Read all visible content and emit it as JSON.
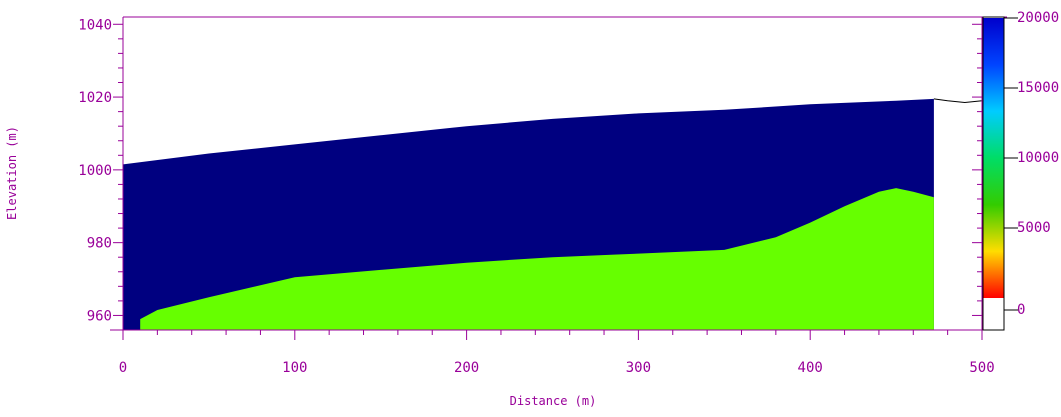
{
  "chart_data": {
    "type": "area",
    "xlabel": "Distance (m)",
    "ylabel": "Elevation (m)",
    "xlim": [
      0,
      500
    ],
    "ylim": [
      956,
      1042
    ],
    "x_ticks": [
      "0",
      "100",
      "200",
      "300",
      "400",
      "500"
    ],
    "y_ticks": [
      "960",
      "980",
      "1000",
      "1020",
      "1040"
    ],
    "colorbar": {
      "min": 0,
      "max": 20000,
      "ticks": [
        "20000",
        "15000",
        "10000",
        "5000",
        "0"
      ],
      "colors": [
        "#ff0000",
        "#ffdd00",
        "#33cc00",
        "#00dd66",
        "#00ccff",
        "#0044ff",
        "#0000cc"
      ]
    },
    "series": [
      {
        "fill": "#000080",
        "x": [
          0,
          50,
          100,
          150,
          200,
          250,
          300,
          350,
          400,
          450,
          472
        ],
        "y": [
          1001.5,
          1004.5,
          1007,
          1009.5,
          1012,
          1014,
          1015.5,
          1016.5,
          1018,
          1019,
          1019.5
        ]
      },
      {
        "fill": "#66ff00",
        "x": [
          10,
          20,
          50,
          100,
          150,
          200,
          250,
          300,
          350,
          380,
          400,
          420,
          440,
          450,
          460,
          472
        ],
        "y": [
          959,
          961.5,
          965,
          970.5,
          972.5,
          974.5,
          976,
          977,
          978,
          981.5,
          985.5,
          990,
          994,
          995,
          994,
          992.5
        ]
      }
    ],
    "terrain": {
      "x": [
        472,
        480,
        490,
        500,
        505
      ],
      "y": [
        1019.5,
        1019,
        1018.5,
        1019,
        1020
      ]
    }
  }
}
